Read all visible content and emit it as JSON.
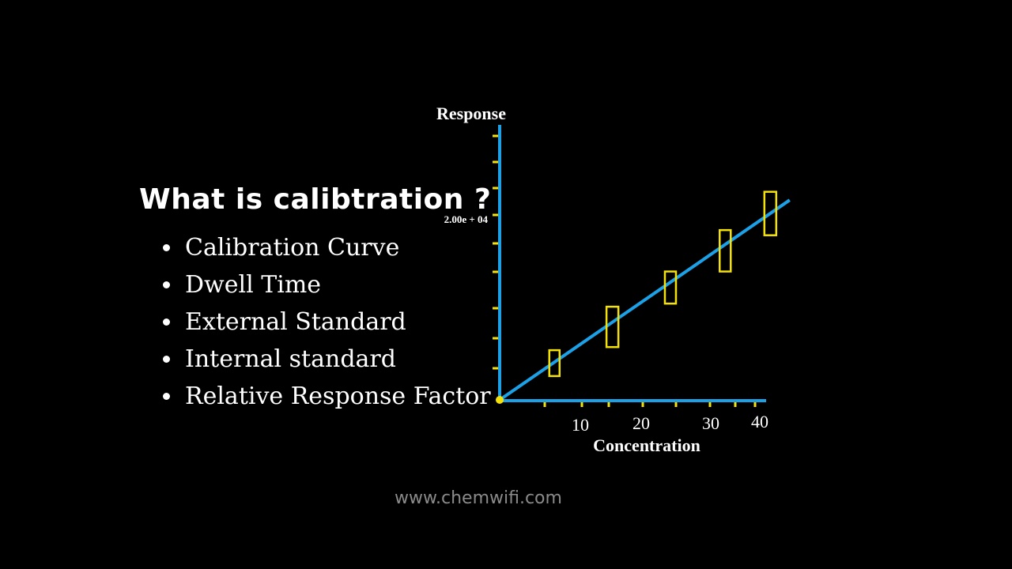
{
  "heading": "What is calibtration ?",
  "topics": [
    "Calibration Curve",
    "Dwell Time",
    "External Standard",
    "Internal standard",
    "Relative Response Factor"
  ],
  "footer": "www.chemwifi.com",
  "colors": {
    "background": "#000000",
    "axis": "#1da1e6",
    "line": "#1da1e6",
    "marker": "#f5e10a",
    "text": "#ffffff"
  },
  "chart_data": {
    "type": "line",
    "ylabel": "Response",
    "xlabel": "Concentration",
    "x_ticks": [
      10,
      20,
      30,
      40
    ],
    "y_tick_label": "2.00e + 04",
    "origin": [
      0,
      0
    ],
    "fit_line": {
      "x": [
        0,
        45
      ],
      "y": [
        0,
        1.93
      ]
    },
    "error_boxes": [
      {
        "x": 8.5,
        "low": 0.23,
        "high": 0.48
      },
      {
        "x": 17.5,
        "low": 0.51,
        "high": 0.9
      },
      {
        "x": 26.5,
        "low": 0.93,
        "high": 1.24
      },
      {
        "x": 35.0,
        "low": 1.24,
        "high": 1.64
      },
      {
        "x": 42.0,
        "low": 1.59,
        "high": 2.01
      }
    ]
  }
}
